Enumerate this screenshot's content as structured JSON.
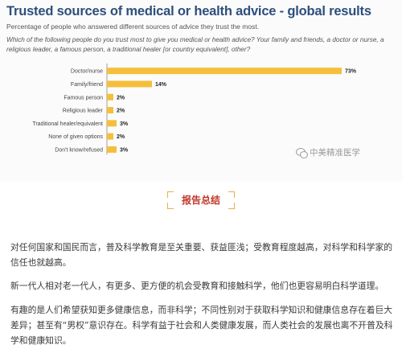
{
  "chart_data": {
    "type": "bar",
    "orientation": "horizontal",
    "title": "Trusted sources of medical or health advice - global results",
    "subtitle": "Percentage of people who answered different sources of advice they trust the most.",
    "question": "Which of the following people do you trust most to give you medical or health advice? Your family and friends, a doctor or nurse, a religious leader, a famous person, a traditional healer [or country equivalent], other?",
    "categories": [
      "Doctor/nurse",
      "Family/friend",
      "Famous person",
      "Religious leader",
      "Traditional healer/equivalent",
      "None of given options",
      "Don't know/refused"
    ],
    "values": [
      73,
      14,
      2,
      2,
      3,
      2,
      3
    ],
    "value_labels": [
      "73%",
      "14%",
      "2%",
      "2%",
      "3%",
      "2%",
      "3%"
    ],
    "xlim": [
      0,
      73
    ],
    "bar_color": "#f5bf3c",
    "grid": false
  },
  "watermark": "中美精准医学",
  "section_title": "报告总结",
  "paragraphs": [
    "对任何国家和国民而言，普及科学教育是至关重要、获益匪浅；受教育程度越高，对科学和科学家的信任也就越高。",
    "新一代人相对老一代人，有更多、更方便的机会受教育和接触科学，他们也更容易明白科学道理。",
    "有趣的是人们希望获知更多健康信息，而非科学；不同性别对于获取科学知识和健康信息存在着巨大差异；甚至有“男权”意识存在。科学有益于社会和人类健康发展，而人类社会的发展也离不开普及科学和健康知识。"
  ]
}
